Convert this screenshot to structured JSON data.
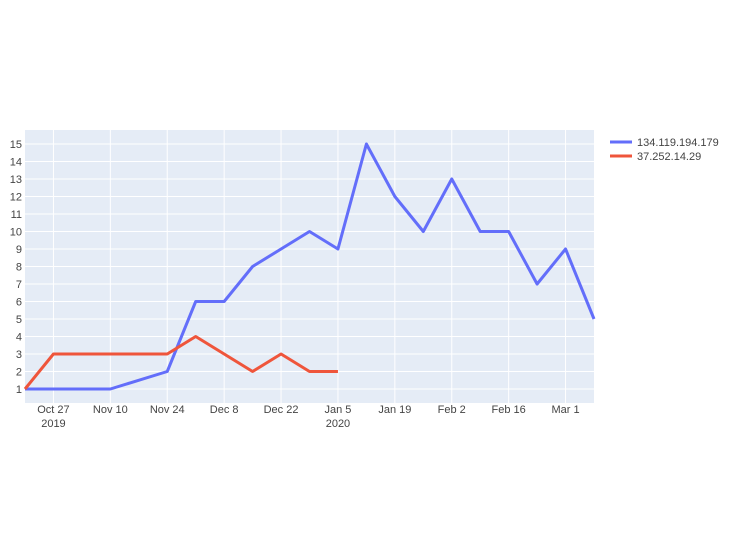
{
  "chart_data": {
    "type": "line",
    "title": "",
    "xlabel": "",
    "ylabel": "",
    "x_axis": {
      "type": "date",
      "range": [
        "2019-10-20",
        "2020-03-08"
      ],
      "ticks": [
        {
          "date": "2019-10-27",
          "label": "Oct 27",
          "sublabel": "2019"
        },
        {
          "date": "2019-11-10",
          "label": "Nov 10",
          "sublabel": ""
        },
        {
          "date": "2019-11-24",
          "label": "Nov 24",
          "sublabel": ""
        },
        {
          "date": "2019-12-08",
          "label": "Dec 8",
          "sublabel": ""
        },
        {
          "date": "2019-12-22",
          "label": "Dec 22",
          "sublabel": ""
        },
        {
          "date": "2020-01-05",
          "label": "Jan 5",
          "sublabel": "2020"
        },
        {
          "date": "2020-01-19",
          "label": "Jan 19",
          "sublabel": ""
        },
        {
          "date": "2020-02-02",
          "label": "Feb 2",
          "sublabel": ""
        },
        {
          "date": "2020-02-16",
          "label": "Feb 16",
          "sublabel": ""
        },
        {
          "date": "2020-03-01",
          "label": "Mar 1",
          "sublabel": ""
        }
      ]
    },
    "y_axis": {
      "range": [
        0.2,
        15.8
      ],
      "ticks": [
        1,
        2,
        3,
        4,
        5,
        6,
        7,
        8,
        9,
        10,
        11,
        12,
        13,
        14,
        15
      ]
    },
    "grid": true,
    "legend_position": "top-right",
    "series": [
      {
        "name": "134.119.194.179",
        "color": "#636efa",
        "points": [
          {
            "x": "2019-10-20",
            "y": 1
          },
          {
            "x": "2019-10-27",
            "y": 1
          },
          {
            "x": "2019-11-03",
            "y": 1
          },
          {
            "x": "2019-11-10",
            "y": 1
          },
          {
            "x": "2019-11-24",
            "y": 2
          },
          {
            "x": "2019-12-01",
            "y": 6
          },
          {
            "x": "2019-12-08",
            "y": 6
          },
          {
            "x": "2019-12-15",
            "y": 8
          },
          {
            "x": "2019-12-22",
            "y": 9
          },
          {
            "x": "2019-12-29",
            "y": 10
          },
          {
            "x": "2020-01-05",
            "y": 9
          },
          {
            "x": "2020-01-12",
            "y": 15
          },
          {
            "x": "2020-01-19",
            "y": 12
          },
          {
            "x": "2020-01-26",
            "y": 10
          },
          {
            "x": "2020-02-02",
            "y": 13
          },
          {
            "x": "2020-02-09",
            "y": 10
          },
          {
            "x": "2020-02-16",
            "y": 10
          },
          {
            "x": "2020-02-23",
            "y": 7
          },
          {
            "x": "2020-03-01",
            "y": 9
          },
          {
            "x": "2020-03-08",
            "y": 5
          }
        ]
      },
      {
        "name": "37.252.14.29",
        "color": "#ef553b",
        "points": [
          {
            "x": "2019-10-20",
            "y": 1
          },
          {
            "x": "2019-10-27",
            "y": 3
          },
          {
            "x": "2019-11-03",
            "y": 3
          },
          {
            "x": "2019-11-10",
            "y": 3
          },
          {
            "x": "2019-11-17",
            "y": 3
          },
          {
            "x": "2019-11-24",
            "y": 3
          },
          {
            "x": "2019-12-01",
            "y": 4
          },
          {
            "x": "2019-12-15",
            "y": 2
          },
          {
            "x": "2019-12-22",
            "y": 3
          },
          {
            "x": "2019-12-29",
            "y": 2
          },
          {
            "x": "2020-01-05",
            "y": 2
          }
        ]
      }
    ]
  },
  "colors": {
    "plot_background": "#e5ecf6",
    "grid": "#ffffff",
    "tick_text": "#444444"
  }
}
